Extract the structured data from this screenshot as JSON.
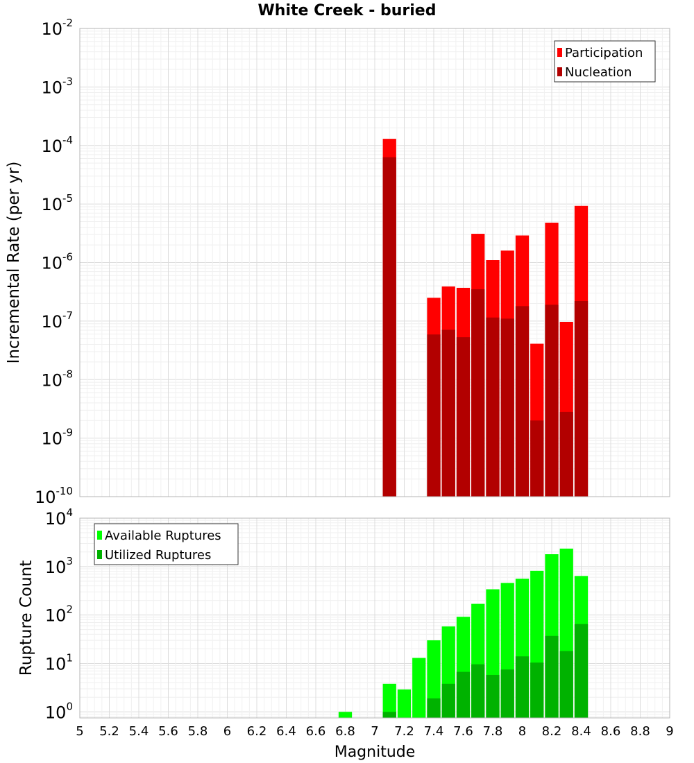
{
  "title": "White Creek - buried",
  "colors": {
    "participation": "#ff0000",
    "nucleation": "#b20000",
    "available": "#00ff00",
    "utilized": "#00b200",
    "grid": "#e6e6e6",
    "frame": "#b4b4b4"
  },
  "x_axis": {
    "label": "Magnitude",
    "range": [
      5,
      9
    ],
    "ticks": [
      "5",
      "5.2",
      "5.4",
      "5.6",
      "5.8",
      "6",
      "6.2",
      "6.4",
      "6.6",
      "6.8",
      "7",
      "7.2",
      "7.4",
      "7.6",
      "7.8",
      "8",
      "8.2",
      "8.4",
      "8.6",
      "8.8",
      "9"
    ]
  },
  "chart_data": [
    {
      "type": "bar",
      "panel": "top",
      "title": "White Creek - buried",
      "xlabel": "Magnitude",
      "ylabel": "Incremental Rate (per yr)",
      "y_scale": "log",
      "ylim": [
        1e-10,
        0.01
      ],
      "y_ticks": [
        {
          "base": "10",
          "exp": "-2"
        },
        {
          "base": "10",
          "exp": "-3"
        },
        {
          "base": "10",
          "exp": "-4"
        },
        {
          "base": "10",
          "exp": "-5"
        },
        {
          "base": "10",
          "exp": "-6"
        },
        {
          "base": "10",
          "exp": "-7"
        },
        {
          "base": "10",
          "exp": "-8"
        },
        {
          "base": "10",
          "exp": "-9"
        },
        {
          "base": "10",
          "exp": "-10"
        }
      ],
      "grid": true,
      "legend_position": "top-right",
      "x": [
        7.1,
        7.4,
        7.5,
        7.6,
        7.7,
        7.8,
        7.9,
        8.0,
        8.1,
        8.2,
        8.3,
        8.4
      ],
      "series": [
        {
          "name": "Participation",
          "values": [
            0.00013,
            2.5e-07,
            3.9e-07,
            3.7e-07,
            3.1e-06,
            1.1e-06,
            1.6e-06,
            2.9e-06,
            4.1e-08,
            4.8e-06,
            9.7e-08,
            9.3e-06
          ]
        },
        {
          "name": "Nucleation",
          "values": [
            6.3e-05,
            5.9e-08,
            7.1e-08,
            5.3e-08,
            3.5e-07,
            1.15e-07,
            1.1e-07,
            1.8e-07,
            2e-09,
            1.9e-07,
            2.8e-09,
            2.2e-07
          ]
        }
      ]
    },
    {
      "type": "bar",
      "panel": "bottom",
      "xlabel": "Magnitude",
      "ylabel": "Rupture Count",
      "y_scale": "log",
      "ylim": [
        0.75,
        10000
      ],
      "y_ticks": [
        {
          "base": "10",
          "exp": "4"
        },
        {
          "base": "10",
          "exp": "3"
        },
        {
          "base": "10",
          "exp": "2"
        },
        {
          "base": "10",
          "exp": "1"
        },
        {
          "base": "10",
          "exp": "0"
        }
      ],
      "grid": true,
      "legend_position": "top-left",
      "x": [
        6.8,
        7.1,
        7.2,
        7.3,
        7.4,
        7.5,
        7.6,
        7.7,
        7.8,
        7.9,
        8.0,
        8.1,
        8.2,
        8.3,
        8.4
      ],
      "series": [
        {
          "name": "Available Ruptures",
          "values": [
            1,
            3.8,
            2.9,
            13,
            30,
            58,
            92,
            170,
            340,
            460,
            560,
            820,
            1800,
            2350,
            640
          ]
        },
        {
          "name": "Utilized Ruptures",
          "values": [
            0,
            1,
            0,
            0,
            1.9,
            3.8,
            6.7,
            9.6,
            5.8,
            7.5,
            14,
            10.4,
            37,
            18,
            65
          ]
        }
      ]
    }
  ]
}
